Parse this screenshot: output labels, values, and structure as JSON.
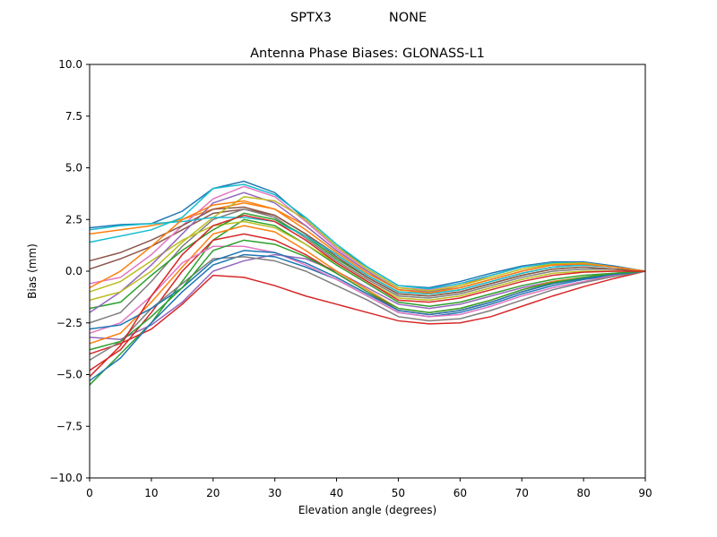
{
  "suptitle": {
    "left": "SPTX3",
    "right": "NONE"
  },
  "chart_data": {
    "type": "line",
    "title": "Antenna Phase Biases: GLONASS-L1",
    "xlabel": "Elevation angle (degrees)",
    "ylabel": "Bias (mm)",
    "xlim": [
      0,
      90
    ],
    "ylim": [
      -10,
      10
    ],
    "xticks": [
      "0",
      "10",
      "20",
      "30",
      "40",
      "50",
      "60",
      "70",
      "80",
      "90"
    ],
    "xtick_values": [
      0,
      10,
      20,
      30,
      40,
      50,
      60,
      70,
      80,
      90
    ],
    "yticks": [
      "−10.0",
      "−7.5",
      "−5.0",
      "−2.5",
      "0.0",
      "2.5",
      "5.0",
      "7.5",
      "10.0"
    ],
    "ytick_values": [
      -10,
      -7.5,
      -5,
      -2.5,
      0,
      2.5,
      5,
      7.5,
      10
    ],
    "grid": false,
    "x": [
      0,
      5,
      10,
      15,
      20,
      25,
      30,
      35,
      40,
      45,
      50,
      55,
      60,
      65,
      70,
      75,
      80,
      85,
      90
    ],
    "colors": [
      "#1f77b4",
      "#ff7f0e",
      "#2ca02c",
      "#d62728",
      "#9467bd",
      "#8c564b",
      "#e377c2",
      "#7f7f7f",
      "#bcbd22",
      "#17becf"
    ],
    "series": [
      {
        "values": [
          2.1,
          2.25,
          2.3,
          2.9,
          4.0,
          4.35,
          3.8,
          2.5,
          1.2,
          0.2,
          -0.7,
          -0.8,
          -0.5,
          -0.1,
          0.25,
          0.45,
          0.45,
          0.25,
          0
        ]
      },
      {
        "values": [
          1.8,
          2.0,
          2.2,
          2.5,
          3.0,
          3.3,
          3.0,
          2.2,
          1.0,
          0.0,
          -0.9,
          -1.0,
          -0.7,
          -0.2,
          0.2,
          0.4,
          0.4,
          0.2,
          0
        ]
      },
      {
        "values": [
          -5.5,
          -4.0,
          -2.5,
          -0.5,
          1.5,
          2.5,
          2.2,
          1.3,
          0.3,
          -0.6,
          -1.5,
          -1.7,
          -1.5,
          -1.1,
          -0.7,
          -0.4,
          -0.2,
          -0.1,
          0
        ]
      },
      {
        "values": [
          -4.0,
          -3.5,
          -2.8,
          -1.6,
          -0.2,
          -0.3,
          -0.7,
          -1.2,
          -1.6,
          -2.0,
          -2.4,
          -2.55,
          -2.5,
          -2.2,
          -1.7,
          -1.2,
          -0.75,
          -0.35,
          0
        ]
      },
      {
        "values": [
          -3.2,
          -3.3,
          -2.6,
          -1.5,
          0.0,
          0.5,
          0.8,
          0.6,
          0.0,
          -0.8,
          -1.6,
          -1.8,
          -1.6,
          -1.2,
          -0.8,
          -0.5,
          -0.3,
          -0.1,
          0
        ]
      },
      {
        "values": [
          0.1,
          0.6,
          1.2,
          2.0,
          2.8,
          3.0,
          2.7,
          1.8,
          0.8,
          -0.2,
          -1.0,
          -1.1,
          -0.9,
          -0.5,
          -0.1,
          0.2,
          0.3,
          0.2,
          0
        ]
      },
      {
        "values": [
          -0.6,
          -0.3,
          0.8,
          2.2,
          3.5,
          4.1,
          3.6,
          2.4,
          1.1,
          0.1,
          -0.8,
          -0.9,
          -0.6,
          -0.2,
          0.2,
          0.4,
          0.4,
          0.2,
          0
        ]
      },
      {
        "values": [
          -2.5,
          -2.0,
          -0.5,
          1.2,
          2.5,
          3.0,
          2.6,
          1.6,
          0.5,
          -0.4,
          -1.2,
          -1.3,
          -1.1,
          -0.7,
          -0.3,
          0.0,
          0.1,
          0.1,
          0
        ]
      },
      {
        "values": [
          -1.0,
          -0.5,
          0.5,
          1.5,
          2.2,
          2.4,
          2.1,
          1.3,
          0.4,
          -0.5,
          -1.3,
          -1.4,
          -1.2,
          -0.8,
          -0.4,
          -0.1,
          0.0,
          0.0,
          0
        ]
      },
      {
        "values": [
          1.4,
          1.7,
          2.0,
          2.6,
          4.0,
          4.2,
          3.7,
          2.6,
          1.3,
          0.2,
          -0.7,
          -0.85,
          -0.6,
          -0.2,
          0.2,
          0.4,
          0.4,
          0.2,
          0
        ]
      },
      {
        "values": [
          -5.3,
          -4.2,
          -2.5,
          -1.0,
          0.3,
          0.8,
          0.7,
          0.2,
          -0.4,
          -1.2,
          -2.0,
          -2.2,
          -2.0,
          -1.6,
          -1.1,
          -0.7,
          -0.4,
          -0.2,
          0
        ]
      },
      {
        "values": [
          -3.5,
          -3.0,
          -1.5,
          0.2,
          1.8,
          2.2,
          1.9,
          1.0,
          0.0,
          -0.9,
          -1.8,
          -2.0,
          -1.8,
          -1.4,
          -0.9,
          -0.5,
          -0.3,
          -0.1,
          0
        ]
      },
      {
        "values": [
          -1.8,
          -1.5,
          -0.2,
          1.0,
          2.0,
          2.8,
          2.5,
          1.7,
          0.6,
          -0.3,
          -1.1,
          -1.2,
          -1.0,
          -0.6,
          -0.2,
          0.1,
          0.2,
          0.1,
          0
        ]
      },
      {
        "values": [
          -4.8,
          -3.8,
          -2.0,
          0.0,
          1.5,
          1.8,
          1.5,
          0.8,
          -0.1,
          -1.0,
          -1.9,
          -2.1,
          -1.9,
          -1.5,
          -1.0,
          -0.6,
          -0.35,
          -0.15,
          0
        ]
      },
      {
        "values": [
          -2.0,
          -1.0,
          0.3,
          1.8,
          3.3,
          3.8,
          3.3,
          2.2,
          1.0,
          0.0,
          -0.9,
          -1.0,
          -0.8,
          -0.4,
          0.0,
          0.3,
          0.3,
          0.2,
          0
        ]
      },
      {
        "values": [
          0.5,
          0.9,
          1.5,
          2.2,
          3.0,
          3.1,
          2.7,
          1.8,
          0.7,
          -0.3,
          -1.1,
          -1.2,
          -1.0,
          -0.6,
          -0.2,
          0.1,
          0.2,
          0.1,
          0
        ]
      },
      {
        "values": [
          -3.0,
          -2.5,
          -1.2,
          0.4,
          1.2,
          1.2,
          0.9,
          0.3,
          -0.4,
          -1.2,
          -2.0,
          -2.2,
          -2.1,
          -1.7,
          -1.2,
          -0.8,
          -0.5,
          -0.2,
          0
        ]
      },
      {
        "values": [
          -4.3,
          -3.4,
          -1.8,
          -0.6,
          0.6,
          0.7,
          0.5,
          0.0,
          -0.7,
          -1.4,
          -2.2,
          -2.4,
          -2.3,
          -1.9,
          -1.4,
          -0.9,
          -0.55,
          -0.25,
          0
        ]
      },
      {
        "values": [
          -1.4,
          -1.0,
          0.0,
          1.4,
          2.6,
          3.6,
          3.4,
          2.5,
          1.2,
          0.1,
          -0.8,
          -0.95,
          -0.7,
          -0.3,
          0.1,
          0.35,
          0.4,
          0.2,
          0
        ]
      },
      {
        "values": [
          2.0,
          2.2,
          2.3,
          2.4,
          2.6,
          2.6,
          2.4,
          1.7,
          0.8,
          -0.2,
          -1.0,
          -1.1,
          -0.9,
          -0.5,
          -0.1,
          0.2,
          0.3,
          0.2,
          0
        ]
      },
      {
        "values": [
          -2.8,
          -2.6,
          -1.8,
          -0.8,
          0.5,
          1.0,
          0.9,
          0.4,
          -0.3,
          -1.1,
          -1.9,
          -2.1,
          -1.9,
          -1.5,
          -1.0,
          -0.6,
          -0.35,
          -0.15,
          0
        ]
      },
      {
        "values": [
          -0.8,
          0.0,
          1.2,
          2.5,
          3.2,
          3.4,
          3.0,
          2.0,
          0.9,
          -0.1,
          -0.9,
          -1.05,
          -0.8,
          -0.4,
          0.0,
          0.3,
          0.35,
          0.2,
          0
        ]
      },
      {
        "values": [
          -3.8,
          -3.4,
          -2.2,
          -0.8,
          1.0,
          1.5,
          1.3,
          0.7,
          -0.1,
          -1.0,
          -1.8,
          -2.0,
          -1.8,
          -1.4,
          -0.9,
          -0.55,
          -0.3,
          -0.1,
          0
        ]
      },
      {
        "values": [
          -5.1,
          -3.6,
          -1.2,
          0.8,
          2.2,
          2.7,
          2.4,
          1.5,
          0.4,
          -0.5,
          -1.4,
          -1.5,
          -1.3,
          -0.9,
          -0.5,
          -0.2,
          -0.05,
          0,
          0
        ]
      }
    ]
  }
}
